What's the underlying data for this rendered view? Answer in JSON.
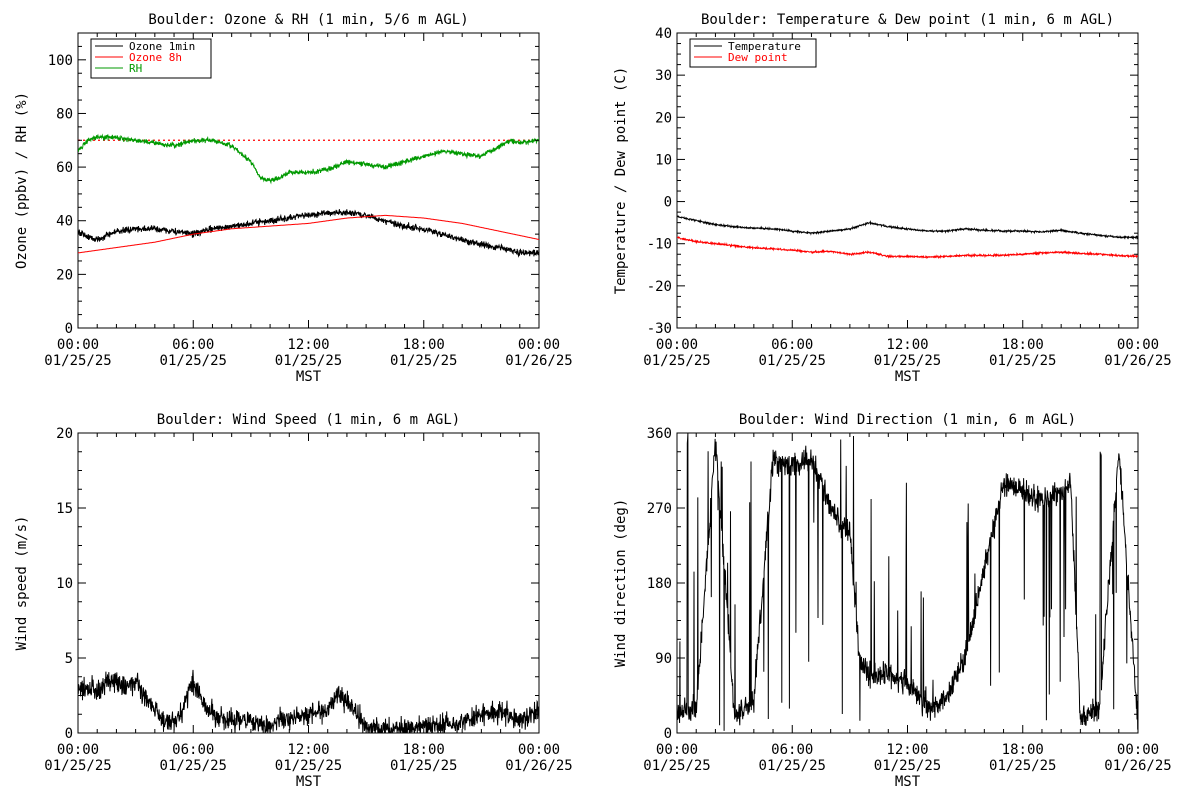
{
  "chart_data": [
    {
      "type": "line",
      "title": "Boulder: Ozone & RH (1 min, 5/6 m AGL)",
      "ylabel": "Ozone (ppbv) / RH (%)",
      "xlabel": "MST",
      "ylim": [
        0,
        110
      ],
      "yticks": [
        0,
        20,
        40,
        60,
        80,
        100
      ],
      "x_ticks": [
        {
          "time": "00:00",
          "date": "01/25/25"
        },
        {
          "time": "06:00",
          "date": "01/25/25"
        },
        {
          "time": "12:00",
          "date": "01/25/25"
        },
        {
          "time": "18:00",
          "date": "01/25/25"
        },
        {
          "time": "00:00",
          "date": "01/26/25"
        }
      ],
      "xlim": [
        0,
        24
      ],
      "legend": "top-left",
      "reference_lines": [
        {
          "y": 70,
          "color": "#ff0000",
          "style": "dotted"
        }
      ],
      "series": [
        {
          "name": "Ozone 1min",
          "color": "#000000",
          "noise": 1.2,
          "x": [
            0,
            0.5,
            1,
            2,
            3,
            4,
            5,
            6,
            7,
            8,
            9,
            10,
            11,
            12,
            13,
            14,
            15,
            16,
            17,
            18,
            19,
            20,
            21,
            22,
            23,
            24
          ],
          "values": [
            36,
            34,
            33,
            36,
            37,
            37,
            36,
            35,
            37,
            38,
            39,
            40,
            41,
            42,
            43,
            43,
            42,
            40,
            38,
            37,
            35,
            33,
            31,
            30,
            28,
            28
          ]
        },
        {
          "name": "Ozone 8h",
          "color": "#ff0000",
          "noise": 0,
          "x": [
            0,
            2,
            4,
            6,
            8,
            10,
            12,
            14,
            16,
            18,
            20,
            22,
            24
          ],
          "values": [
            28,
            30,
            32,
            35,
            37,
            38,
            39,
            41,
            42,
            41,
            39,
            36,
            33
          ]
        },
        {
          "name": "RH",
          "color": "#009900",
          "noise": 0.9,
          "x": [
            0,
            0.5,
            1,
            2,
            3,
            4,
            5,
            6,
            7,
            8,
            9,
            9.5,
            10,
            10.5,
            11,
            12,
            13,
            14,
            15,
            16,
            17,
            18,
            19,
            20,
            21,
            22,
            22.5,
            23,
            24
          ],
          "values": [
            66,
            70,
            71,
            71,
            70,
            69,
            68,
            70,
            70,
            68,
            62,
            56,
            55,
            56,
            58,
            58,
            59,
            62,
            61,
            60,
            62,
            64,
            66,
            65,
            64,
            68,
            70,
            69,
            70
          ]
        }
      ]
    },
    {
      "type": "line",
      "title": "Boulder: Temperature & Dew point (1 min, 6 m AGL)",
      "ylabel": "Temperature / Dew point (C)",
      "xlabel": "MST",
      "ylim": [
        -30,
        40
      ],
      "yticks": [
        -30,
        -20,
        -10,
        0,
        10,
        20,
        30,
        40
      ],
      "x_ticks": [
        {
          "time": "00:00",
          "date": "01/25/25"
        },
        {
          "time": "06:00",
          "date": "01/25/25"
        },
        {
          "time": "12:00",
          "date": "01/25/25"
        },
        {
          "time": "18:00",
          "date": "01/25/25"
        },
        {
          "time": "00:00",
          "date": "01/26/25"
        }
      ],
      "xlim": [
        0,
        24
      ],
      "legend": "top-left",
      "series": [
        {
          "name": "Temperature",
          "color": "#000000",
          "noise": 0.2,
          "x": [
            0,
            1,
            2,
            3,
            4,
            5,
            6,
            7,
            8,
            9,
            10,
            11,
            12,
            13,
            14,
            15,
            16,
            17,
            18,
            19,
            20,
            21,
            22,
            23,
            24
          ],
          "values": [
            -3.5,
            -4.5,
            -5.5,
            -6,
            -6.3,
            -6.5,
            -7,
            -7.5,
            -7,
            -6.5,
            -5,
            -6,
            -6.5,
            -7,
            -7,
            -6.5,
            -6.8,
            -7,
            -7,
            -7.2,
            -6.8,
            -7.5,
            -8,
            -8.5,
            -8.5
          ]
        },
        {
          "name": "Dew point",
          "color": "#ff0000",
          "noise": 0.2,
          "x": [
            0,
            1,
            2,
            3,
            4,
            5,
            6,
            7,
            8,
            9,
            10,
            11,
            12,
            13,
            14,
            15,
            16,
            17,
            18,
            19,
            20,
            21,
            22,
            23,
            24
          ],
          "values": [
            -8.5,
            -9.5,
            -10,
            -10.5,
            -11,
            -11.2,
            -11.5,
            -12,
            -11.8,
            -12.5,
            -12,
            -13,
            -13,
            -13.2,
            -13,
            -12.8,
            -12.8,
            -12.7,
            -12.5,
            -12.2,
            -12,
            -12.3,
            -12.5,
            -12.8,
            -13
          ]
        }
      ]
    },
    {
      "type": "line",
      "title": "Boulder: Wind Speed (1 min, 6 m AGL)",
      "ylabel": "Wind speed (m/s)",
      "xlabel": "MST",
      "ylim": [
        0,
        20
      ],
      "yticks": [
        0,
        5,
        10,
        15,
        20
      ],
      "x_ticks": [
        {
          "time": "00:00",
          "date": "01/25/25"
        },
        {
          "time": "06:00",
          "date": "01/25/25"
        },
        {
          "time": "12:00",
          "date": "01/25/25"
        },
        {
          "time": "18:00",
          "date": "01/25/25"
        },
        {
          "time": "00:00",
          "date": "01/26/25"
        }
      ],
      "xlim": [
        0,
        24
      ],
      "series": [
        {
          "name": "",
          "color": "#000000",
          "noise": 0.7,
          "x": [
            0,
            1,
            1.5,
            2,
            2.5,
            3,
            3.5,
            4,
            4.5,
            5,
            5.5,
            5.8,
            6,
            6.5,
            7,
            8,
            9,
            10,
            11,
            12,
            13,
            13.5,
            14,
            15,
            16,
            17,
            18,
            19,
            20,
            21,
            22,
            23,
            24
          ],
          "values": [
            3,
            2.8,
            3.5,
            3.5,
            3,
            3.5,
            2.5,
            1.5,
            0.8,
            0.8,
            1.5,
            3,
            3.5,
            2,
            1.3,
            0.8,
            0.7,
            0.5,
            1,
            1.3,
            1.5,
            2.5,
            2.2,
            0.4,
            0.3,
            0.3,
            0.5,
            0.6,
            0.6,
            1.3,
            1.4,
            0.8,
            1.5
          ]
        }
      ]
    },
    {
      "type": "line",
      "title": "Boulder: Wind Direction (1 min, 6 m AGL)",
      "ylabel": "Wind direction (deg)",
      "xlabel": "MST",
      "ylim": [
        0,
        360
      ],
      "yticks": [
        0,
        90,
        180,
        270,
        360
      ],
      "x_ticks": [
        {
          "time": "00:00",
          "date": "01/25/25"
        },
        {
          "time": "06:00",
          "date": "01/25/25"
        },
        {
          "time": "12:00",
          "date": "01/25/25"
        },
        {
          "time": "18:00",
          "date": "01/25/25"
        },
        {
          "time": "00:00",
          "date": "01/26/25"
        }
      ],
      "xlim": [
        0,
        24
      ],
      "series": [
        {
          "name": "",
          "color": "#000000",
          "noise": 14,
          "wrap": true,
          "x": [
            0,
            1,
            2,
            3,
            4,
            5,
            6,
            7,
            7.5,
            8,
            8.5,
            9,
            9.5,
            10,
            11,
            12,
            13,
            14,
            15,
            16,
            17,
            18,
            19,
            20,
            20.5,
            21,
            22,
            23,
            24
          ],
          "values": [
            20,
            30,
            350,
            20,
            40,
            330,
            320,
            330,
            300,
            270,
            250,
            240,
            90,
            70,
            70,
            60,
            30,
            40,
            90,
            200,
            300,
            290,
            280,
            290,
            300,
            20,
            30,
            340,
            10
          ]
        }
      ]
    }
  ]
}
